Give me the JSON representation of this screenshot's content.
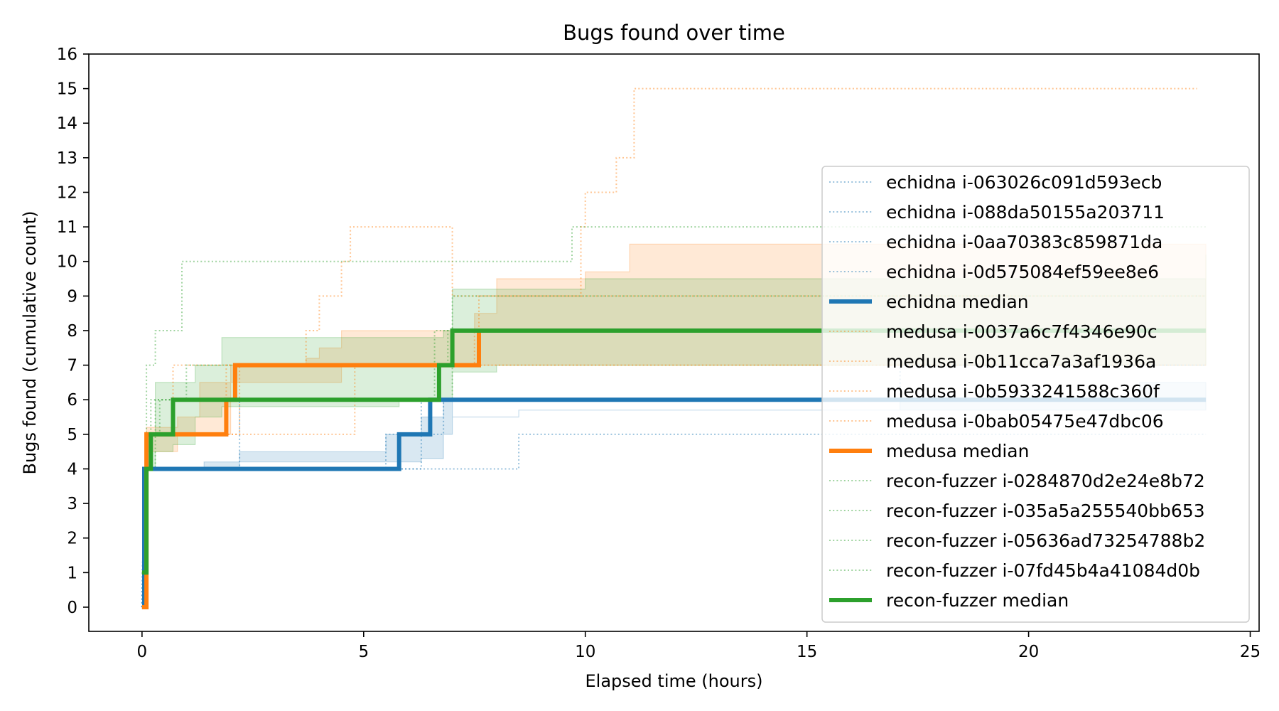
{
  "chart_data": {
    "type": "line",
    "title": "Bugs found over time",
    "xlabel": "Elapsed time (hours)",
    "ylabel": "Bugs found (cumulative count)",
    "xlim": [
      -1.2,
      25.2
    ],
    "ylim": [
      -0.7,
      16.0
    ],
    "xticks": [
      0,
      5,
      10,
      15,
      20,
      25
    ],
    "yticks": [
      0,
      1,
      2,
      3,
      4,
      5,
      6,
      7,
      8,
      9,
      10,
      11,
      12,
      13,
      14,
      15,
      16
    ],
    "grid": false,
    "legend_position": "right",
    "colors": {
      "echidna": "#1f77b4",
      "medusa": "#ff7f0e",
      "recon-fuzzer": "#2ca02c"
    },
    "bands": [
      {
        "group": "echidna",
        "points": [
          [
            0.0,
            0.0,
            0.0
          ],
          [
            0.05,
            4.0,
            4.0
          ],
          [
            1.4,
            4.0,
            4.2
          ],
          [
            2.2,
            4.2,
            4.5
          ],
          [
            5.5,
            4.2,
            5.0
          ],
          [
            6.3,
            4.3,
            5.5
          ],
          [
            6.8,
            5.0,
            6.0
          ],
          [
            7.0,
            5.5,
            5.5
          ],
          [
            8.5,
            5.7,
            5.7
          ],
          [
            17.1,
            5.7,
            6.0
          ],
          [
            22.5,
            5.7,
            6.5
          ],
          [
            24.0,
            5.7,
            6.5
          ]
        ]
      },
      {
        "group": "medusa",
        "points": [
          [
            0.0,
            0.0,
            0.0
          ],
          [
            0.1,
            4.5,
            5.2
          ],
          [
            0.8,
            5.0,
            5.5
          ],
          [
            1.3,
            5.0,
            6.5
          ],
          [
            2.0,
            6.5,
            7.0
          ],
          [
            3.7,
            6.5,
            7.2
          ],
          [
            4.0,
            6.5,
            7.5
          ],
          [
            4.5,
            7.0,
            8.0
          ],
          [
            7.5,
            7.0,
            8.5
          ],
          [
            8.0,
            7.0,
            9.5
          ],
          [
            10.0,
            7.0,
            9.7
          ],
          [
            11.0,
            7.0,
            10.5
          ],
          [
            16.1,
            7.0,
            10.5
          ],
          [
            24.0,
            7.0,
            10.5
          ]
        ]
      },
      {
        "group": "recon-fuzzer",
        "points": [
          [
            0.0,
            1.0,
            1.0
          ],
          [
            0.1,
            4.0,
            5.0
          ],
          [
            0.3,
            4.5,
            6.5
          ],
          [
            0.7,
            4.7,
            6.5
          ],
          [
            1.2,
            5.5,
            7.0
          ],
          [
            1.8,
            5.8,
            7.8
          ],
          [
            5.8,
            6.0,
            7.8
          ],
          [
            6.8,
            6.0,
            8.0
          ],
          [
            7.0,
            6.8,
            9.2
          ],
          [
            8.0,
            7.0,
            9.2
          ],
          [
            10.0,
            7.0,
            9.5
          ],
          [
            22.6,
            7.0,
            9.5
          ],
          [
            24.0,
            7.0,
            10.2
          ]
        ]
      }
    ],
    "series": [
      {
        "name": "echidna i-063026c091d593ecb",
        "group": "echidna",
        "style": "run",
        "points": [
          [
            0,
            0
          ],
          [
            0.05,
            4
          ],
          [
            8.5,
            4
          ],
          [
            8.5,
            5
          ],
          [
            24.0,
            5
          ]
        ]
      },
      {
        "name": "echidna i-088da50155a203711",
        "group": "echidna",
        "style": "run",
        "points": [
          [
            0,
            0
          ],
          [
            0.05,
            4
          ],
          [
            2.2,
            4
          ],
          [
            2.2,
            6
          ],
          [
            24.0,
            6
          ]
        ]
      },
      {
        "name": "echidna i-0aa70383c859871da",
        "group": "echidna",
        "style": "run",
        "points": [
          [
            0,
            0
          ],
          [
            0.05,
            4
          ],
          [
            6.3,
            4
          ],
          [
            6.3,
            6
          ],
          [
            24.0,
            6
          ]
        ]
      },
      {
        "name": "echidna i-0d575084ef59ee8e6",
        "group": "echidna",
        "style": "run",
        "points": [
          [
            0,
            0
          ],
          [
            0.05,
            4
          ],
          [
            5.5,
            4
          ],
          [
            5.5,
            5
          ],
          [
            6.8,
            5
          ],
          [
            6.8,
            6
          ],
          [
            17.1,
            6
          ],
          [
            17.1,
            7
          ],
          [
            24.0,
            7
          ]
        ]
      },
      {
        "name": "echidna median",
        "group": "echidna",
        "style": "median",
        "points": [
          [
            0,
            0
          ],
          [
            0.05,
            0
          ],
          [
            0.05,
            4
          ],
          [
            5.8,
            4
          ],
          [
            5.8,
            5
          ],
          [
            6.5,
            5
          ],
          [
            6.5,
            6
          ],
          [
            24.0,
            6
          ]
        ]
      },
      {
        "name": "medusa i-0037a6c7f4346e90c",
        "group": "medusa",
        "style": "run",
        "points": [
          [
            0,
            0
          ],
          [
            0.1,
            0
          ],
          [
            0.1,
            5
          ],
          [
            1.9,
            5
          ],
          [
            1.9,
            7
          ],
          [
            7.6,
            7
          ],
          [
            7.6,
            9
          ],
          [
            16.1,
            9
          ],
          [
            16.1,
            9
          ],
          [
            24.0,
            9
          ]
        ]
      },
      {
        "name": "medusa i-0b11cca7a3af1936a",
        "group": "medusa",
        "style": "run",
        "points": [
          [
            0,
            0
          ],
          [
            0.1,
            0
          ],
          [
            0.1,
            5
          ],
          [
            4.8,
            5
          ],
          [
            4.8,
            7
          ],
          [
            24.0,
            7
          ]
        ]
      },
      {
        "name": "medusa i-0b5933241588c360f",
        "group": "medusa",
        "style": "run",
        "points": [
          [
            0,
            0
          ],
          [
            0.1,
            0
          ],
          [
            0.1,
            5
          ],
          [
            2.2,
            5
          ],
          [
            2.2,
            7
          ],
          [
            7.5,
            7
          ],
          [
            7.5,
            8
          ],
          [
            24.0,
            8
          ]
        ]
      },
      {
        "name": "medusa i-0bab05475e47dbc06",
        "group": "medusa",
        "style": "run",
        "points": [
          [
            0,
            0
          ],
          [
            0.1,
            0
          ],
          [
            0.1,
            5
          ],
          [
            0.7,
            5
          ],
          [
            0.7,
            7
          ],
          [
            3.7,
            7
          ],
          [
            3.7,
            8
          ],
          [
            4.0,
            8
          ],
          [
            4.0,
            9
          ],
          [
            4.5,
            9
          ],
          [
            4.5,
            10
          ],
          [
            4.7,
            10
          ],
          [
            4.7,
            11
          ],
          [
            7.0,
            11
          ],
          [
            7.0,
            9
          ],
          [
            9.9,
            9
          ],
          [
            9.9,
            11
          ],
          [
            10.0,
            11
          ],
          [
            10.0,
            12
          ],
          [
            10.7,
            12
          ],
          [
            10.7,
            13
          ],
          [
            11.1,
            13
          ],
          [
            11.1,
            15
          ],
          [
            23.8,
            15
          ]
        ]
      },
      {
        "name": "medusa median",
        "group": "medusa",
        "style": "median",
        "points": [
          [
            0,
            0
          ],
          [
            0.1,
            0
          ],
          [
            0.1,
            5
          ],
          [
            1.9,
            5
          ],
          [
            1.9,
            6
          ],
          [
            2.1,
            6
          ],
          [
            2.1,
            7
          ],
          [
            7.6,
            7
          ],
          [
            7.6,
            8
          ],
          [
            24.0,
            8
          ]
        ]
      },
      {
        "name": "recon-fuzzer i-0284870d2e24e8b72",
        "group": "recon-fuzzer",
        "style": "run",
        "points": [
          [
            0,
            1
          ],
          [
            0.1,
            1
          ],
          [
            0.1,
            7
          ],
          [
            0.3,
            7
          ],
          [
            0.3,
            8
          ],
          [
            0.9,
            8
          ],
          [
            0.9,
            10
          ],
          [
            9.7,
            10
          ],
          [
            9.7,
            11
          ],
          [
            24.0,
            11
          ]
        ]
      },
      {
        "name": "recon-fuzzer i-035a5a255540bb653",
        "group": "recon-fuzzer",
        "style": "run",
        "points": [
          [
            0,
            1
          ],
          [
            0.1,
            1
          ],
          [
            0.1,
            5
          ],
          [
            0.2,
            5
          ],
          [
            0.2,
            6
          ],
          [
            1.0,
            6
          ],
          [
            1.0,
            7
          ],
          [
            6.9,
            7
          ],
          [
            6.9,
            8
          ],
          [
            24.0,
            8
          ]
        ]
      },
      {
        "name": "recon-fuzzer i-05636ad73254788b2",
        "group": "recon-fuzzer",
        "style": "run",
        "points": [
          [
            0,
            1
          ],
          [
            0.1,
            1
          ],
          [
            0.1,
            5
          ],
          [
            0.4,
            5
          ],
          [
            0.4,
            6
          ],
          [
            6.6,
            6
          ],
          [
            6.6,
            8
          ],
          [
            24.0,
            8
          ]
        ]
      },
      {
        "name": "recon-fuzzer i-07fd45b4a41084d0b",
        "group": "recon-fuzzer",
        "style": "run",
        "points": [
          [
            0,
            1
          ],
          [
            0.1,
            1
          ],
          [
            0.1,
            4
          ],
          [
            0.3,
            4
          ],
          [
            0.3,
            6
          ],
          [
            7.0,
            6
          ],
          [
            7.0,
            9
          ],
          [
            24.0,
            9
          ]
        ]
      },
      {
        "name": "recon-fuzzer median",
        "group": "recon-fuzzer",
        "style": "median",
        "points": [
          [
            0,
            1
          ],
          [
            0.1,
            1
          ],
          [
            0.1,
            4
          ],
          [
            0.2,
            4
          ],
          [
            0.2,
            5
          ],
          [
            0.7,
            5
          ],
          [
            0.7,
            6
          ],
          [
            6.7,
            6
          ],
          [
            6.7,
            7
          ],
          [
            7.0,
            7
          ],
          [
            7.0,
            8
          ],
          [
            24.0,
            8
          ]
        ]
      }
    ]
  }
}
